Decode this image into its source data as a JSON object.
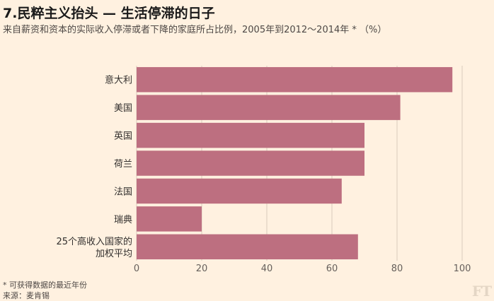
{
  "title": "7.民粹主义抬头 — 生活停滞的日子",
  "subtitle": "来自薪资和资本的实际收入停滞或者下降的家庭所占比例，2005年到2012～2014年 * （%）",
  "footnote": "* 可获得数据的最近年份",
  "source": "来源：麦肯锡",
  "logo": "FT",
  "colors": {
    "bar": "#bd6f80",
    "background": "#fff1e0",
    "grid": "#d9ccbb"
  },
  "chart_data": {
    "type": "bar",
    "orientation": "horizontal",
    "categories": [
      "意大利",
      "美国",
      "英国",
      "荷兰",
      "法国",
      "瑞典",
      "25个高收入国家的\n加权平均"
    ],
    "values": [
      97,
      81,
      70,
      70,
      63,
      20,
      68
    ],
    "xlim": [
      0,
      100
    ],
    "xticks": [
      0,
      20,
      40,
      60,
      80,
      100
    ],
    "grid": "vertical"
  }
}
